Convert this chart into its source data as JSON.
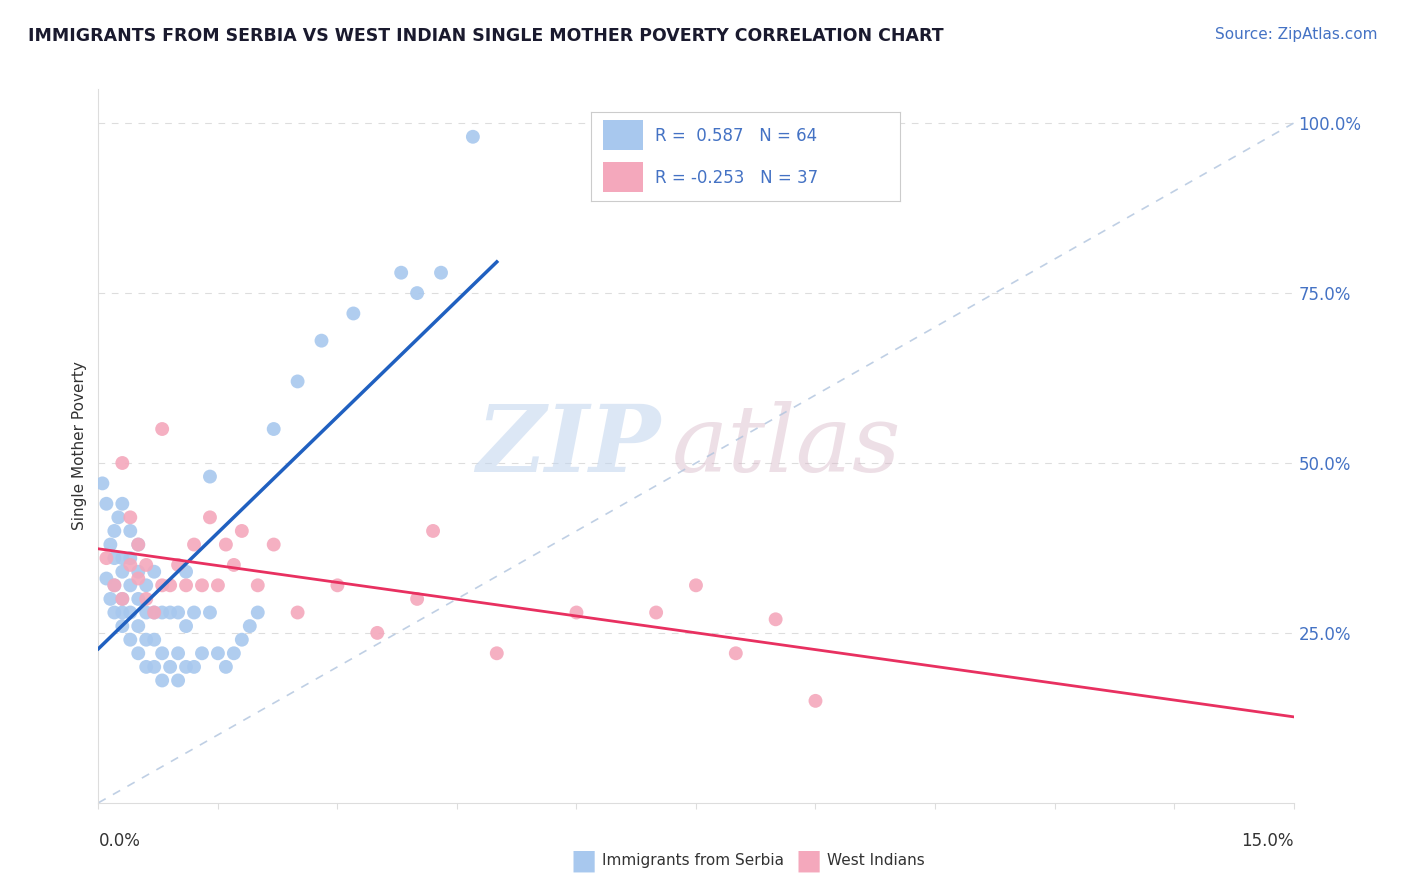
{
  "title": "IMMIGRANTS FROM SERBIA VS WEST INDIAN SINGLE MOTHER POVERTY CORRELATION CHART",
  "source": "Source: ZipAtlas.com",
  "ylabel": "Single Mother Poverty",
  "R_blue": 0.587,
  "N_blue": 64,
  "R_pink": -0.253,
  "N_pink": 37,
  "blue_color": "#A8C8EE",
  "pink_color": "#F4A8BC",
  "blue_line_color": "#2060C0",
  "pink_line_color": "#E83060",
  "ref_line_color": "#B0C4DE",
  "background_color": "#FFFFFF",
  "grid_color": "#DDDDDD",
  "ytick_color": "#4472C4",
  "text_color": "#333333",
  "title_color": "#1a1a2e",
  "source_color": "#4472C4",
  "xlim": [
    0.0,
    0.15
  ],
  "ylim": [
    0.0,
    1.05
  ],
  "yticks": [
    0.25,
    0.5,
    0.75,
    1.0
  ],
  "ytick_labels": [
    "25.0%",
    "50.0%",
    "75.0%",
    "100.0%"
  ],
  "serbia_x": [
    0.0005,
    0.001,
    0.001,
    0.0015,
    0.0015,
    0.002,
    0.002,
    0.002,
    0.002,
    0.0025,
    0.003,
    0.003,
    0.003,
    0.003,
    0.003,
    0.003,
    0.004,
    0.004,
    0.004,
    0.004,
    0.004,
    0.005,
    0.005,
    0.005,
    0.005,
    0.005,
    0.006,
    0.006,
    0.006,
    0.006,
    0.007,
    0.007,
    0.007,
    0.007,
    0.008,
    0.008,
    0.008,
    0.009,
    0.009,
    0.01,
    0.01,
    0.01,
    0.011,
    0.011,
    0.011,
    0.012,
    0.012,
    0.013,
    0.014,
    0.014,
    0.015,
    0.016,
    0.017,
    0.018,
    0.019,
    0.02,
    0.022,
    0.025,
    0.028,
    0.032,
    0.038,
    0.04,
    0.043,
    0.047
  ],
  "serbia_y": [
    0.47,
    0.33,
    0.44,
    0.3,
    0.38,
    0.28,
    0.32,
    0.36,
    0.4,
    0.42,
    0.26,
    0.28,
    0.3,
    0.34,
    0.36,
    0.44,
    0.24,
    0.28,
    0.32,
    0.36,
    0.4,
    0.22,
    0.26,
    0.3,
    0.34,
    0.38,
    0.2,
    0.24,
    0.28,
    0.32,
    0.2,
    0.24,
    0.28,
    0.34,
    0.18,
    0.22,
    0.28,
    0.2,
    0.28,
    0.18,
    0.22,
    0.28,
    0.2,
    0.26,
    0.34,
    0.2,
    0.28,
    0.22,
    0.28,
    0.48,
    0.22,
    0.2,
    0.22,
    0.24,
    0.26,
    0.28,
    0.55,
    0.62,
    0.68,
    0.72,
    0.78,
    0.75,
    0.78,
    0.98
  ],
  "west_indian_x": [
    0.001,
    0.002,
    0.003,
    0.003,
    0.004,
    0.004,
    0.005,
    0.005,
    0.006,
    0.006,
    0.007,
    0.008,
    0.008,
    0.009,
    0.01,
    0.011,
    0.012,
    0.013,
    0.014,
    0.015,
    0.016,
    0.017,
    0.018,
    0.02,
    0.022,
    0.025,
    0.03,
    0.035,
    0.04,
    0.042,
    0.05,
    0.06,
    0.07,
    0.075,
    0.08,
    0.085,
    0.09
  ],
  "west_indian_y": [
    0.36,
    0.32,
    0.3,
    0.5,
    0.35,
    0.42,
    0.33,
    0.38,
    0.3,
    0.35,
    0.28,
    0.32,
    0.55,
    0.32,
    0.35,
    0.32,
    0.38,
    0.32,
    0.42,
    0.32,
    0.38,
    0.35,
    0.4,
    0.32,
    0.38,
    0.28,
    0.32,
    0.25,
    0.3,
    0.4,
    0.22,
    0.28,
    0.28,
    0.32,
    0.22,
    0.27,
    0.15
  ],
  "watermark_text": "ZIPatlas",
  "watermark_zip_color": "#C8D8EE",
  "watermark_atlas_color": "#D0B8C8",
  "legend_blue_label": "Immigrants from Serbia",
  "legend_pink_label": "West Indians"
}
